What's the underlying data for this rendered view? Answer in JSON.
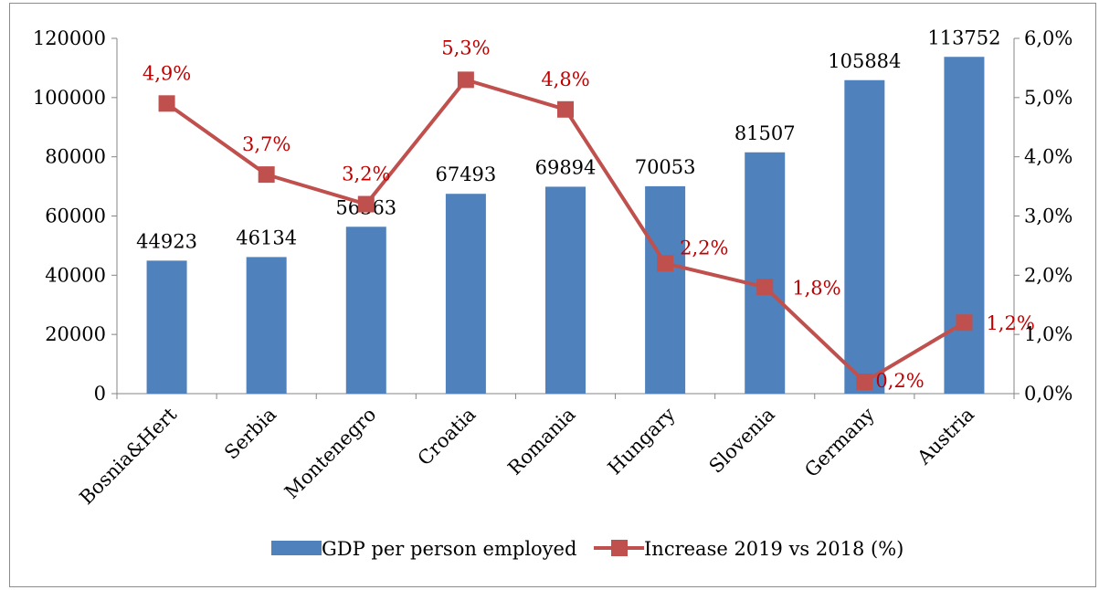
{
  "chart_data": {
    "type": "bar",
    "categories": [
      "Bosnia&Hert",
      "Serbia",
      "Montenegro",
      "Croatia",
      "Romania",
      "Hungary",
      "Slovenia",
      "Germany",
      "Austria"
    ],
    "series": [
      {
        "name": "GDP per person employed",
        "type": "bar",
        "axis": "left",
        "values": [
          44923,
          46134,
          56363,
          67493,
          69894,
          70053,
          81507,
          105884,
          113752
        ],
        "labels": [
          "44923",
          "46134",
          "56363",
          "67493",
          "69894",
          "70053",
          "81507",
          "105884",
          "113752"
        ],
        "color": "#4f81bd"
      },
      {
        "name": "Increase 2019 vs 2018 (%)",
        "type": "line",
        "axis": "right",
        "values": [
          4.9,
          3.7,
          3.2,
          5.3,
          4.8,
          2.2,
          1.8,
          0.2,
          1.2
        ],
        "labels": [
          "4,9%",
          "3,7%",
          "3,2%",
          "5,3%",
          "4,8%",
          "2,2%",
          "1,8%",
          "0,2%",
          "1,2%"
        ],
        "color": "#c0504d",
        "label_color": "#c00000"
      }
    ],
    "y_left": {
      "range": [
        0,
        120000
      ],
      "ticks": [
        0,
        20000,
        40000,
        60000,
        80000,
        100000,
        120000
      ],
      "tick_labels": [
        "0",
        "20000",
        "40000",
        "60000",
        "80000",
        "100000",
        "120000"
      ]
    },
    "y_right": {
      "range": [
        0,
        6
      ],
      "ticks": [
        0,
        1,
        2,
        3,
        4,
        5,
        6
      ],
      "tick_labels": [
        "0,0%",
        "1,0%",
        "2,0%",
        "3,0%",
        "4,0%",
        "5,0%",
        "6,0%"
      ]
    },
    "grid": false,
    "legend": "bottom"
  }
}
